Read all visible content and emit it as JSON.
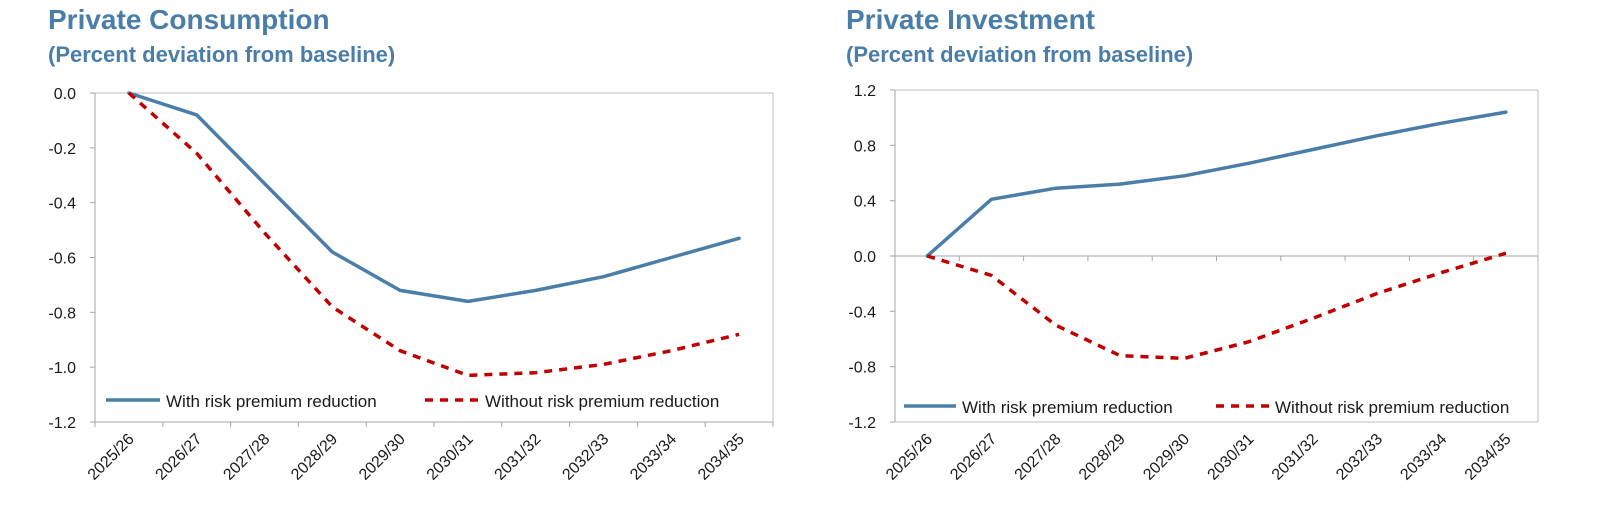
{
  "chart_data": [
    {
      "type": "line",
      "title": "Private Consumption",
      "subtitle": "(Percent deviation from baseline)",
      "categories": [
        "2025/26",
        "2026/27",
        "2027/28",
        "2028/29",
        "2029/30",
        "2030/31",
        "2031/32",
        "2032/33",
        "2033/34",
        "2034/35"
      ],
      "series": [
        {
          "name": "With risk premium reduction",
          "style": "solid",
          "color": "#4a7ea8",
          "values": [
            0.0,
            -0.08,
            -0.33,
            -0.58,
            -0.72,
            -0.76,
            -0.72,
            -0.67,
            -0.6,
            -0.53
          ]
        },
        {
          "name": "Without risk premium reduction",
          "style": "dashed",
          "color": "#c00000",
          "values": [
            0.0,
            -0.22,
            -0.51,
            -0.78,
            -0.94,
            -1.03,
            -1.02,
            -0.99,
            -0.94,
            -0.88
          ]
        }
      ],
      "ylim": [
        -1.2,
        0.0
      ],
      "yticks": [
        "0.0",
        "-0.2",
        "-0.4",
        "-0.6",
        "-0.8",
        "-1.0",
        "-1.2"
      ],
      "grid": false,
      "legend_placement": "bottom"
    },
    {
      "type": "line",
      "title": "Private Investment",
      "subtitle": "(Percent deviation from baseline)",
      "categories": [
        "2025/26",
        "2026/27",
        "2027/28",
        "2028/29",
        "2029/30",
        "2030/31",
        "2031/32",
        "2032/33",
        "2033/34",
        "2034/35"
      ],
      "series": [
        {
          "name": "With risk premium reduction",
          "style": "solid",
          "color": "#4a7ea8",
          "values": [
            0.0,
            0.41,
            0.49,
            0.52,
            0.58,
            0.67,
            0.77,
            0.87,
            0.96,
            1.04
          ]
        },
        {
          "name": "Without risk premium reduction",
          "style": "dashed",
          "color": "#c00000",
          "values": [
            0.0,
            -0.14,
            -0.5,
            -0.72,
            -0.74,
            -0.62,
            -0.45,
            -0.27,
            -0.12,
            0.02
          ]
        }
      ],
      "ylim": [
        -1.2,
        1.2
      ],
      "yticks": [
        "1.2",
        "0.8",
        "0.4",
        "0.0",
        "-0.4",
        "-0.8",
        "-1.2"
      ],
      "grid": false,
      "legend_placement": "bottom"
    }
  ]
}
